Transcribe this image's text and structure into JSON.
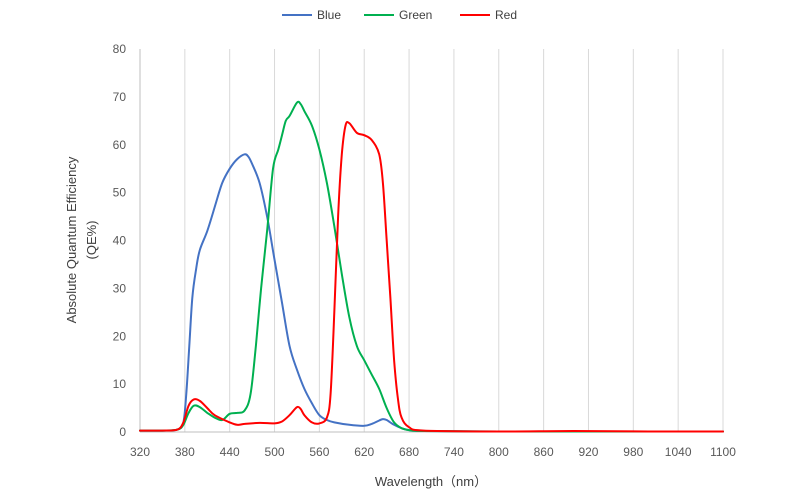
{
  "chart_data": {
    "type": "line",
    "title": "",
    "xlabel": "Wavelength（nm）",
    "ylabel_line1": "Absolute Quantum Efficiency",
    "ylabel_line2": "(QE%)",
    "xlim": [
      320,
      1100
    ],
    "ylim": [
      0,
      80
    ],
    "x_ticks": [
      320,
      380,
      440,
      500,
      560,
      620,
      680,
      740,
      800,
      860,
      920,
      980,
      1040,
      1100
    ],
    "y_ticks": [
      0,
      10,
      20,
      30,
      40,
      50,
      60,
      70,
      80
    ],
    "grid": "vertical",
    "legend_position": "top-center",
    "series": [
      {
        "name": "Blue",
        "color": "#4472C4",
        "points": [
          [
            320,
            0.3
          ],
          [
            350,
            0.3
          ],
          [
            370,
            0.5
          ],
          [
            378,
            2
          ],
          [
            382,
            8
          ],
          [
            386,
            18
          ],
          [
            390,
            28
          ],
          [
            395,
            34
          ],
          [
            400,
            38
          ],
          [
            410,
            42
          ],
          [
            420,
            47
          ],
          [
            430,
            52
          ],
          [
            440,
            55
          ],
          [
            450,
            57
          ],
          [
            460,
            58
          ],
          [
            465,
            57.5
          ],
          [
            470,
            56
          ],
          [
            480,
            52
          ],
          [
            490,
            45
          ],
          [
            500,
            36
          ],
          [
            510,
            27
          ],
          [
            520,
            18
          ],
          [
            530,
            13
          ],
          [
            540,
            9
          ],
          [
            550,
            6
          ],
          [
            560,
            3.5
          ],
          [
            570,
            2.5
          ],
          [
            580,
            2
          ],
          [
            600,
            1.5
          ],
          [
            620,
            1.3
          ],
          [
            630,
            1.7
          ],
          [
            640,
            2.4
          ],
          [
            645,
            2.7
          ],
          [
            650,
            2.5
          ],
          [
            660,
            1.5
          ],
          [
            670,
            0.8
          ],
          [
            680,
            0.4
          ],
          [
            700,
            0.2
          ],
          [
            800,
            0.1
          ],
          [
            900,
            0.1
          ],
          [
            1000,
            0.1
          ],
          [
            1100,
            0.1
          ]
        ]
      },
      {
        "name": "Green",
        "color": "#00B050",
        "points": [
          [
            320,
            0.3
          ],
          [
            350,
            0.3
          ],
          [
            370,
            0.5
          ],
          [
            378,
            1.5
          ],
          [
            385,
            4
          ],
          [
            392,
            5.5
          ],
          [
            400,
            5.2
          ],
          [
            410,
            4
          ],
          [
            420,
            3
          ],
          [
            430,
            2.5
          ],
          [
            440,
            3.8
          ],
          [
            450,
            4
          ],
          [
            460,
            4.5
          ],
          [
            468,
            8
          ],
          [
            475,
            18
          ],
          [
            482,
            30
          ],
          [
            490,
            42
          ],
          [
            498,
            55
          ],
          [
            505,
            59
          ],
          [
            510,
            62
          ],
          [
            515,
            65
          ],
          [
            520,
            66
          ],
          [
            530,
            68.8
          ],
          [
            535,
            68.5
          ],
          [
            540,
            67
          ],
          [
            550,
            64
          ],
          [
            560,
            59
          ],
          [
            570,
            52
          ],
          [
            580,
            43
          ],
          [
            590,
            33
          ],
          [
            600,
            24
          ],
          [
            610,
            18
          ],
          [
            620,
            15
          ],
          [
            630,
            12
          ],
          [
            640,
            9
          ],
          [
            650,
            5
          ],
          [
            660,
            2
          ],
          [
            670,
            0.8
          ],
          [
            680,
            0.4
          ],
          [
            700,
            0.2
          ],
          [
            800,
            0.1
          ],
          [
            900,
            0.1
          ],
          [
            1000,
            0.1
          ],
          [
            1100,
            0.1
          ]
        ]
      },
      {
        "name": "Red",
        "color": "#FF0000",
        "points": [
          [
            320,
            0.3
          ],
          [
            350,
            0.3
          ],
          [
            370,
            0.5
          ],
          [
            378,
            2
          ],
          [
            385,
            5.5
          ],
          [
            392,
            6.8
          ],
          [
            400,
            6.5
          ],
          [
            410,
            5
          ],
          [
            420,
            3.5
          ],
          [
            440,
            2
          ],
          [
            450,
            1.5
          ],
          [
            460,
            1.7
          ],
          [
            480,
            1.9
          ],
          [
            500,
            1.8
          ],
          [
            510,
            2.2
          ],
          [
            520,
            3.5
          ],
          [
            530,
            5.2
          ],
          [
            535,
            4.8
          ],
          [
            540,
            3.5
          ],
          [
            550,
            2
          ],
          [
            560,
            1.8
          ],
          [
            570,
            3
          ],
          [
            575,
            8
          ],
          [
            580,
            25
          ],
          [
            585,
            45
          ],
          [
            590,
            58
          ],
          [
            595,
            64
          ],
          [
            600,
            64.5
          ],
          [
            610,
            62.5
          ],
          [
            620,
            62
          ],
          [
            630,
            61
          ],
          [
            640,
            58
          ],
          [
            645,
            52
          ],
          [
            650,
            40
          ],
          [
            655,
            28
          ],
          [
            660,
            15
          ],
          [
            665,
            7
          ],
          [
            670,
            3
          ],
          [
            680,
            1
          ],
          [
            700,
            0.3
          ],
          [
            800,
            0.1
          ],
          [
            900,
            0.2
          ],
          [
            1000,
            0.1
          ],
          [
            1100,
            0.1
          ]
        ]
      }
    ]
  }
}
